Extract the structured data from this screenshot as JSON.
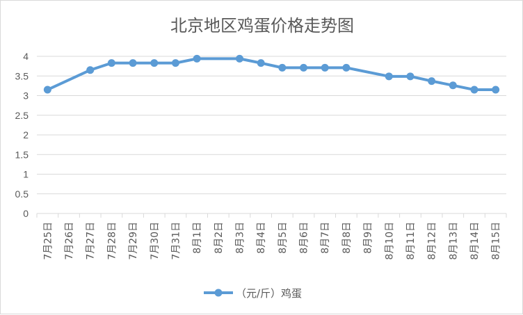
{
  "chart_data": {
    "type": "line",
    "title": "北京地区鸡蛋价格走势图",
    "categories": [
      "7月25日",
      "7月26日",
      "7月27日",
      "7月28日",
      "7月29日",
      "7月30日",
      "7月31日",
      "8月1日",
      "8月2日",
      "8月3日",
      "8月4日",
      "8月5日",
      "8月6日",
      "8月7日",
      "8月8日",
      "8月9日",
      "8月10日",
      "8月11日",
      "8月12日",
      "8月13日",
      "8月14日",
      "8月15日"
    ],
    "series": [
      {
        "name": "（元/斤）鸡蛋",
        "values": [
          3.15,
          null,
          3.65,
          3.83,
          3.83,
          3.83,
          3.83,
          3.94,
          null,
          3.94,
          3.83,
          3.71,
          3.71,
          3.71,
          3.71,
          null,
          3.49,
          3.49,
          3.37,
          3.26,
          3.15,
          3.15
        ]
      }
    ],
    "ylim": [
      0,
      4
    ],
    "yticks": [
      0,
      0.5,
      1,
      1.5,
      2,
      2.5,
      3,
      3.5,
      4
    ],
    "ytick_labels": [
      "0",
      "0.5",
      "1",
      "1.5",
      "2",
      "2.5",
      "3",
      "3.5",
      "4"
    ],
    "grid": true,
    "legend_position": "bottom",
    "colors": {
      "series": "#5b9bd5",
      "grid": "#d9d9d9",
      "text": "#595959"
    }
  }
}
